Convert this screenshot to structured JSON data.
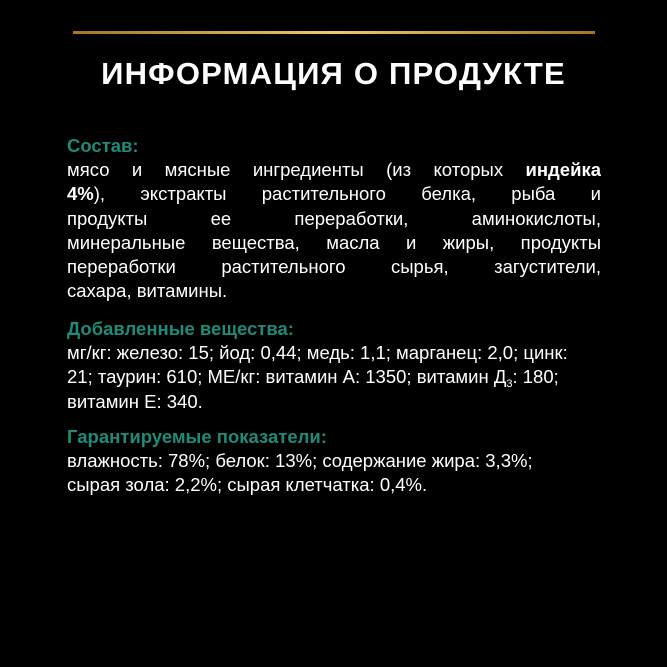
{
  "accent_color": "#1f8a77",
  "title": "ИНФОРМАЦИЯ О ПРОДУКТЕ",
  "composition": {
    "heading": "Состав:",
    "line1_a": "мясо и мясные ингредиенты (из которых ",
    "line1_bold": "индейка",
    "line2_bold": "4%",
    "line2_b": "), экстракты растительного белка, рыба и",
    "line3": "продукты ее переработки, аминокислоты,",
    "line4": "минеральные вещества, масла и жиры, продукты",
    "line5": "переработки растительного сырья, загустители,",
    "line6": "сахара, витамины."
  },
  "additives": {
    "heading": "Добавленные вещества:",
    "line1": "мг/кг: железо: 15; йод: 0,44; медь: 1,1; марганец: 2,0; цинк:",
    "line2_a": "21; таурин: 610; МЕ/кг: витамин А: 1350; витамин Д",
    "line2_sub": "3",
    "line2_b": ": 180;",
    "line3": "витамин Е: 340."
  },
  "guaranteed": {
    "heading": "Гарантируемые показатели:",
    "line1": "влажность: 78%; белок: 13%; содержание жира: 3,3%;",
    "line2": "сырая зола: 2,2%; сырая клетчатка: 0,4%."
  }
}
